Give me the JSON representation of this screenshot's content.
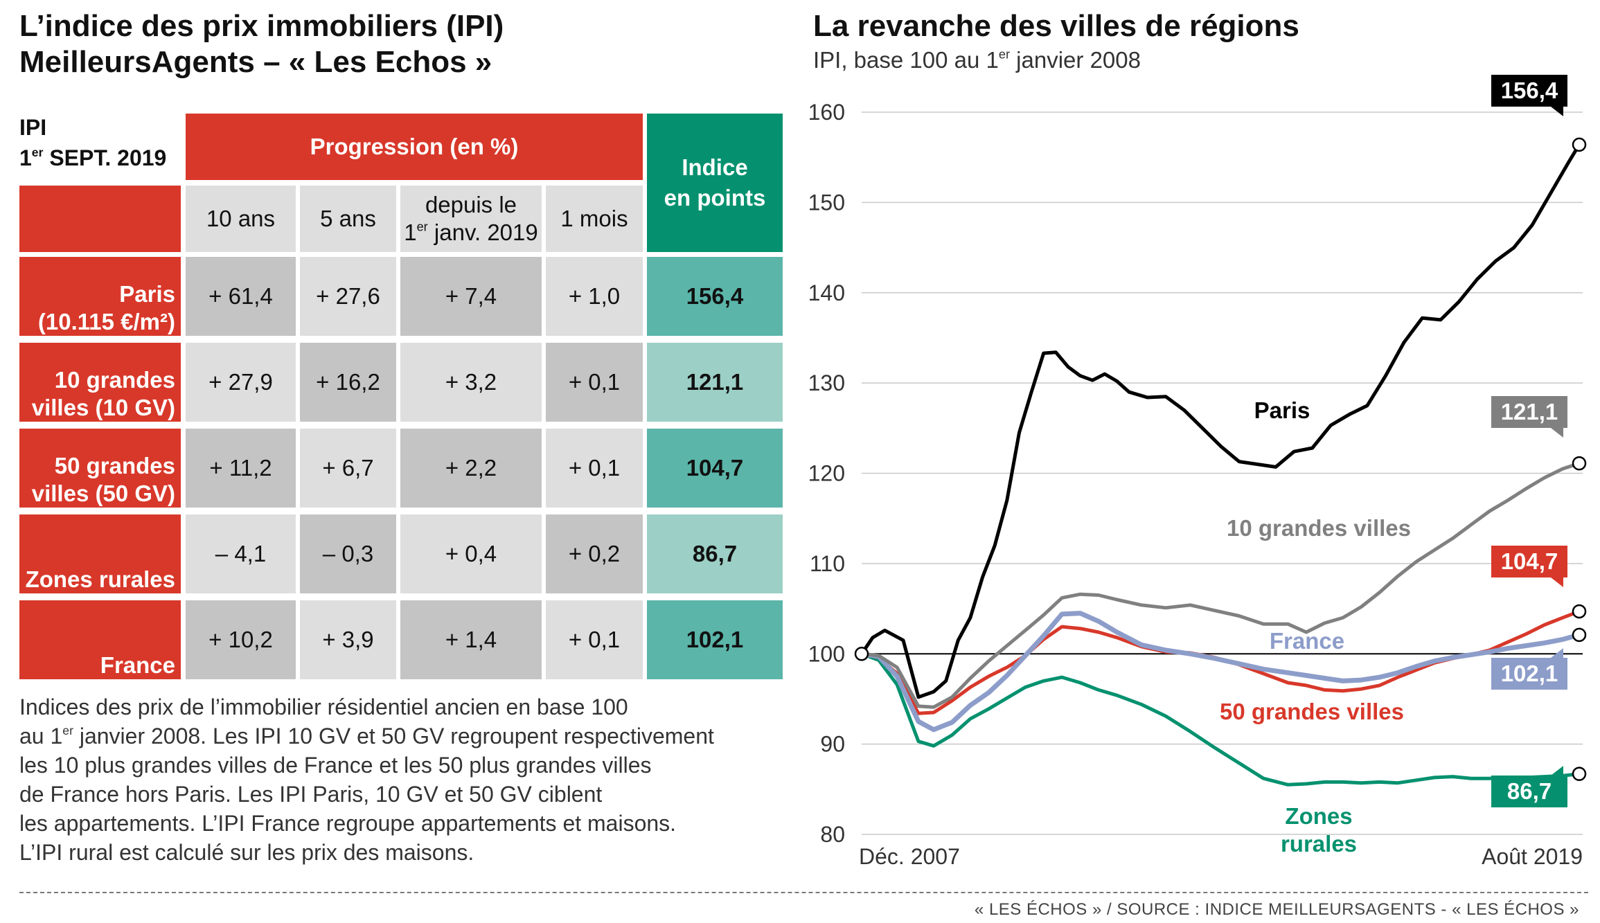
{
  "left_title": [
    "L’indice des prix immobiliers (IPI)",
    "MeilleursAgents – « Les Echos »"
  ],
  "table": {
    "ipi_label": "IPI",
    "date_label_main": "1",
    "date_label_sup": "er",
    "date_label_rest": " SEPT. 2019",
    "progression_header": "Progression (en %)",
    "indice_header": [
      "Indice",
      "en points"
    ],
    "col_headers": [
      "10 ans",
      "5 ans",
      "depuis le",
      "1 mois"
    ],
    "col_header_3_line2_sup": "er",
    "col_header_3_line2_pre": "1",
    "col_header_3_line2_rest": " janv. 2019",
    "rows": [
      {
        "label": [
          "Paris",
          "(10.115 €/m²)"
        ],
        "values": [
          "+ 61,4",
          "+ 27,6",
          "+ 7,4",
          "+ 1,0"
        ],
        "indice": "156,4"
      },
      {
        "label": [
          "10 grandes",
          "villes (10 GV)"
        ],
        "values": [
          "+ 27,9",
          "+ 16,2",
          "+ 3,2",
          "+ 0,1"
        ],
        "indice": "121,1"
      },
      {
        "label": [
          "50 grandes",
          "villes (50 GV)"
        ],
        "values": [
          "+ 11,2",
          "+ 6,7",
          "+ 2,2",
          "+ 0,1"
        ],
        "indice": "104,7"
      },
      {
        "label": [
          "Zones rurales"
        ],
        "values": [
          "– 4,1",
          "– 0,3",
          "+ 0,4",
          "+ 0,2"
        ],
        "indice": "86,7"
      },
      {
        "label": [
          "France"
        ],
        "values": [
          "+ 10,2",
          "+ 3,9",
          "+ 1,4",
          "+ 0,1"
        ],
        "indice": "102,1"
      }
    ]
  },
  "notes": {
    "line1": "Indices des prix de l’immobilier résidentiel ancien en base 100",
    "line2_pre": "au 1",
    "line2_sup": "er",
    "line2_rest": " janvier 2008. Les IPI 10 GV et 50 GV regroupent respectivement",
    "line3": "les 10 plus grandes villes de France et les 50 plus grandes villes",
    "line4": "de France hors Paris. Les IPI Paris, 10 GV et 50 GV ciblent",
    "line5": "les appartements. L’IPI France regroupe appartements et maisons.",
    "line6": "L’IPI rural est calculé sur les prix des maisons."
  },
  "footer": "« LES ÉCHOS » / SOURCE : INDICE MEILLEURSAGENTS - « LES ÉCHOS »",
  "colors": {
    "red": "#d8382a",
    "teal": "#05916f",
    "gray": "#808080",
    "blue": "#8d9dca",
    "black": "#000000"
  },
  "chart_data": {
    "type": "line",
    "title": "La revanche des villes de régions",
    "subtitle_pre": "IPI, base 100 au 1",
    "subtitle_sup": "er",
    "subtitle_rest": " janvier 2008",
    "ylim": [
      80,
      160
    ],
    "yticks": [
      80,
      90,
      100,
      110,
      120,
      130,
      140,
      150,
      160
    ],
    "xlim": [
      2007.92,
      2019.67
    ],
    "x_labels": [
      "Déc. 2007",
      "Août 2019"
    ],
    "baseline": 100,
    "series": [
      {
        "name": "Paris",
        "color": "#000000",
        "end_label": "156,4",
        "x": [
          2007.92,
          2008.1,
          2008.3,
          2008.6,
          2008.85,
          2009.1,
          2009.3,
          2009.5,
          2009.7,
          2009.9,
          2010.1,
          2010.3,
          2010.5,
          2010.7,
          2010.9,
          2011.1,
          2011.3,
          2011.5,
          2011.7,
          2011.9,
          2012.1,
          2012.3,
          2012.6,
          2012.9,
          2013.2,
          2013.5,
          2013.8,
          2014.1,
          2014.4,
          2014.7,
          2015.0,
          2015.3,
          2015.6,
          2015.9,
          2016.2,
          2016.5,
          2016.8,
          2017.1,
          2017.4,
          2017.7,
          2018.0,
          2018.3,
          2018.6,
          2018.9,
          2019.2,
          2019.5,
          2019.67
        ],
        "y": [
          100,
          101.8,
          102.6,
          101.5,
          95.2,
          95.8,
          97,
          101.5,
          104,
          108.5,
          112,
          117,
          124.5,
          129,
          133.3,
          133.4,
          131.8,
          130.8,
          130.3,
          131,
          130.2,
          129,
          128.4,
          128.5,
          127,
          125,
          123,
          121.3,
          121,
          120.7,
          122.4,
          122.8,
          125.3,
          126.5,
          127.5,
          130.8,
          134.5,
          137.2,
          137,
          139,
          141.5,
          143.5,
          145,
          147.5,
          151,
          154.5,
          156.4
        ]
      },
      {
        "name": "10 grandes villes",
        "color": "#808080",
        "end_label": "121,1",
        "x": [
          2007.92,
          2008.2,
          2008.5,
          2008.85,
          2009.1,
          2009.4,
          2009.7,
          2010.0,
          2010.3,
          2010.6,
          2010.9,
          2011.2,
          2011.5,
          2011.8,
          2012.1,
          2012.5,
          2012.9,
          2013.3,
          2013.7,
          2014.1,
          2014.5,
          2014.9,
          2015.2,
          2015.5,
          2015.8,
          2016.1,
          2016.4,
          2016.7,
          2017.0,
          2017.3,
          2017.6,
          2017.9,
          2018.2,
          2018.5,
          2018.8,
          2019.1,
          2019.4,
          2019.67
        ],
        "y": [
          100,
          99.8,
          98.5,
          94.2,
          94.1,
          95.2,
          97.3,
          99.2,
          100.9,
          102.6,
          104.3,
          106.2,
          106.6,
          106.5,
          106,
          105.4,
          105.1,
          105.4,
          104.8,
          104.2,
          103.3,
          103.3,
          102.4,
          103.4,
          104,
          105.2,
          106.8,
          108.6,
          110.2,
          111.5,
          112.8,
          114.3,
          115.8,
          117,
          118.3,
          119.5,
          120.5,
          121.1
        ]
      },
      {
        "name": "50 grandes villes",
        "color": "#d8382a",
        "end_label": "104,7",
        "x": [
          2007.92,
          2008.2,
          2008.5,
          2008.85,
          2009.1,
          2009.4,
          2009.7,
          2010.0,
          2010.3,
          2010.6,
          2010.9,
          2011.2,
          2011.5,
          2011.8,
          2012.1,
          2012.5,
          2012.9,
          2013.3,
          2013.7,
          2014.1,
          2014.5,
          2014.9,
          2015.2,
          2015.5,
          2015.8,
          2016.1,
          2016.4,
          2016.7,
          2017.0,
          2017.3,
          2017.6,
          2017.9,
          2018.2,
          2018.5,
          2018.8,
          2019.1,
          2019.4,
          2019.67
        ],
        "y": [
          100,
          99.6,
          97.8,
          93.4,
          93.5,
          94.8,
          96.3,
          97.5,
          98.5,
          99.8,
          101.6,
          103,
          102.8,
          102.4,
          101.8,
          100.8,
          100.2,
          100.1,
          99.6,
          98.8,
          97.8,
          96.8,
          96.5,
          96,
          95.9,
          96.1,
          96.5,
          97.4,
          98.2,
          99,
          99.5,
          99.9,
          100.4,
          101.3,
          102.2,
          103.2,
          104,
          104.7
        ]
      },
      {
        "name": "France",
        "color": "#8d9dca",
        "end_label": "102,1",
        "x": [
          2007.92,
          2008.2,
          2008.5,
          2008.85,
          2009.1,
          2009.4,
          2009.7,
          2010.0,
          2010.3,
          2010.6,
          2010.9,
          2011.2,
          2011.5,
          2011.8,
          2012.1,
          2012.5,
          2012.9,
          2013.3,
          2013.7,
          2014.1,
          2014.5,
          2014.9,
          2015.2,
          2015.5,
          2015.8,
          2016.1,
          2016.4,
          2016.7,
          2017.0,
          2017.3,
          2017.6,
          2017.9,
          2018.2,
          2018.5,
          2018.8,
          2019.1,
          2019.4,
          2019.67
        ],
        "y": [
          100,
          99.7,
          97.5,
          92.5,
          91.6,
          92.4,
          94.3,
          95.7,
          97.6,
          99.8,
          102,
          104.4,
          104.5,
          103.6,
          102.4,
          101,
          100.4,
          100,
          99.5,
          98.9,
          98.3,
          97.9,
          97.6,
          97.3,
          97,
          97.1,
          97.4,
          97.9,
          98.6,
          99.2,
          99.6,
          99.9,
          100.2,
          100.6,
          100.9,
          101.2,
          101.6,
          102.1
        ]
      },
      {
        "name": "Zones rurales",
        "color": "#05916f",
        "end_label": "86,7",
        "x": [
          2007.92,
          2008.2,
          2008.5,
          2008.85,
          2009.1,
          2009.4,
          2009.7,
          2010.0,
          2010.3,
          2010.6,
          2010.9,
          2011.2,
          2011.5,
          2011.8,
          2012.1,
          2012.5,
          2012.9,
          2013.3,
          2013.7,
          2014.1,
          2014.5,
          2014.9,
          2015.2,
          2015.5,
          2015.8,
          2016.1,
          2016.4,
          2016.7,
          2017.0,
          2017.3,
          2017.6,
          2017.9,
          2018.2,
          2018.5,
          2018.8,
          2019.1,
          2019.4,
          2019.67
        ],
        "y": [
          100,
          99.3,
          96.6,
          90.3,
          89.8,
          91,
          92.8,
          93.9,
          95.1,
          96.3,
          97,
          97.4,
          96.8,
          96,
          95.4,
          94.4,
          93.1,
          91.4,
          89.6,
          87.9,
          86.2,
          85.5,
          85.6,
          85.8,
          85.8,
          85.7,
          85.8,
          85.7,
          86,
          86.3,
          86.4,
          86.2,
          86.2,
          86.3,
          86.3,
          86.4,
          86.5,
          86.7
        ]
      }
    ],
    "line_labels": {
      "Paris": "Paris",
      "10 grandes villes": "10 grandes villes",
      "France": "France",
      "50 grandes villes": "50 grandes villes",
      "Zones rurales": [
        "Zones",
        "rurales"
      ]
    }
  }
}
